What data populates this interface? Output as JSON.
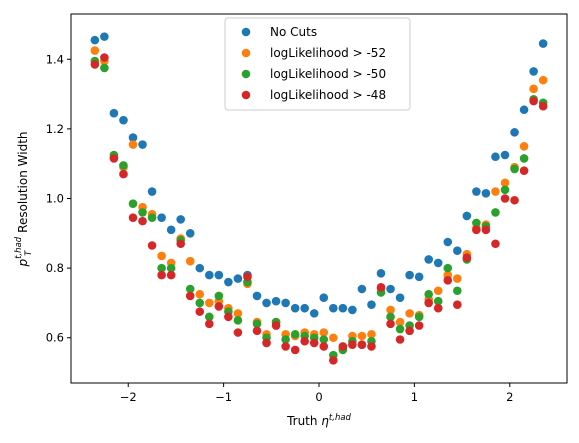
{
  "chart_data": {
    "type": "scatter",
    "xlabel_main": "Truth ",
    "xlabel_sym": "η",
    "xlabel_sup": "t,had",
    "ylabel_sym": "p",
    "ylabel_sub": "T",
    "ylabel_sup": "t,had",
    "ylabel_rest": " Resolution Width",
    "xlim": [
      -2.6,
      2.6
    ],
    "ylim": [
      0.47,
      1.53
    ],
    "x_ticks": [
      -2,
      -1,
      0,
      1,
      2
    ],
    "x_tick_labels": [
      "−2",
      "−1",
      "0",
      "1",
      "2"
    ],
    "y_ticks": [
      0.6,
      0.8,
      1.0,
      1.2,
      1.4
    ],
    "y_tick_labels": [
      "0.6",
      "0.8",
      "1.0",
      "1.2",
      "1.4"
    ],
    "legend_position": "upper-center",
    "series": [
      {
        "name": "No Cuts",
        "color": "#1f77b4",
        "x": [
          -2.35,
          -2.25,
          -2.15,
          -2.05,
          -1.95,
          -1.85,
          -1.75,
          -1.65,
          -1.55,
          -1.45,
          -1.35,
          -1.25,
          -1.15,
          -1.05,
          -0.95,
          -0.85,
          -0.75,
          -0.65,
          -0.55,
          -0.45,
          -0.35,
          -0.25,
          -0.15,
          -0.05,
          0.05,
          0.15,
          0.25,
          0.35,
          0.45,
          0.55,
          0.65,
          0.75,
          0.85,
          0.95,
          1.05,
          1.15,
          1.25,
          1.35,
          1.45,
          1.55,
          1.65,
          1.75,
          1.85,
          1.95,
          2.05,
          2.15,
          2.25,
          2.35
        ],
        "y": [
          1.455,
          1.465,
          1.245,
          1.225,
          1.175,
          1.155,
          1.02,
          0.945,
          0.91,
          0.94,
          0.9,
          0.8,
          0.78,
          0.78,
          0.76,
          0.77,
          0.78,
          0.72,
          0.7,
          0.705,
          0.7,
          0.685,
          0.685,
          0.67,
          0.715,
          0.685,
          0.685,
          0.68,
          0.74,
          0.695,
          0.785,
          0.74,
          0.715,
          0.78,
          0.775,
          0.825,
          0.815,
          0.875,
          0.85,
          0.95,
          1.02,
          1.015,
          1.12,
          1.125,
          1.19,
          1.255,
          1.365,
          1.445
        ]
      },
      {
        "name": "logLikelihood > -52",
        "color": "#ff7f0e",
        "x": [
          -2.35,
          -2.25,
          -2.15,
          -2.05,
          -1.95,
          -1.85,
          -1.75,
          -1.65,
          -1.55,
          -1.45,
          -1.35,
          -1.25,
          -1.15,
          -1.05,
          -0.95,
          -0.85,
          -0.75,
          -0.65,
          -0.55,
          -0.45,
          -0.35,
          -0.25,
          -0.15,
          -0.05,
          0.05,
          0.15,
          0.25,
          0.35,
          0.45,
          0.55,
          0.65,
          0.75,
          0.85,
          0.95,
          1.05,
          1.15,
          1.25,
          1.35,
          1.45,
          1.55,
          1.65,
          1.75,
          1.85,
          1.95,
          2.05,
          2.15,
          2.25,
          2.35
        ],
        "y": [
          1.425,
          1.395,
          1.12,
          1.09,
          1.155,
          0.975,
          0.955,
          0.835,
          0.815,
          0.885,
          0.82,
          0.725,
          0.7,
          0.705,
          0.685,
          0.67,
          0.755,
          0.645,
          0.61,
          0.645,
          0.61,
          0.605,
          0.615,
          0.61,
          0.615,
          0.6,
          0.57,
          0.605,
          0.605,
          0.61,
          0.74,
          0.68,
          0.645,
          0.67,
          0.665,
          0.71,
          0.735,
          0.78,
          0.77,
          0.84,
          0.915,
          0.925,
          1.02,
          1.045,
          1.09,
          1.15,
          1.315,
          1.34
        ]
      },
      {
        "name": "logLikelihood > -50",
        "color": "#2ca02c",
        "x": [
          -2.35,
          -2.25,
          -2.15,
          -2.05,
          -1.95,
          -1.85,
          -1.75,
          -1.65,
          -1.55,
          -1.45,
          -1.35,
          -1.25,
          -1.15,
          -1.05,
          -0.95,
          -0.85,
          -0.75,
          -0.65,
          -0.55,
          -0.45,
          -0.35,
          -0.25,
          -0.15,
          -0.05,
          0.05,
          0.15,
          0.25,
          0.35,
          0.45,
          0.55,
          0.65,
          0.75,
          0.85,
          0.95,
          1.05,
          1.15,
          1.25,
          1.35,
          1.45,
          1.55,
          1.65,
          1.75,
          1.85,
          1.95,
          2.05,
          2.15,
          2.25,
          2.35
        ],
        "y": [
          1.395,
          1.375,
          1.125,
          1.095,
          0.985,
          0.96,
          0.945,
          0.8,
          0.8,
          0.88,
          0.74,
          0.7,
          0.66,
          0.72,
          0.675,
          0.65,
          0.76,
          0.64,
          0.6,
          0.645,
          0.595,
          0.61,
          0.605,
          0.6,
          0.595,
          0.55,
          0.565,
          0.59,
          0.58,
          0.59,
          0.73,
          0.66,
          0.625,
          0.635,
          0.66,
          0.725,
          0.705,
          0.8,
          0.735,
          0.825,
          0.93,
          0.92,
          0.96,
          1.025,
          1.085,
          1.115,
          1.285,
          1.275
        ]
      },
      {
        "name": "logLikelihood > -48",
        "color": "#d62728",
        "x": [
          -2.35,
          -2.25,
          -2.15,
          -2.05,
          -1.95,
          -1.85,
          -1.75,
          -1.65,
          -1.55,
          -1.45,
          -1.35,
          -1.25,
          -1.15,
          -1.05,
          -0.95,
          -0.85,
          -0.75,
          -0.65,
          -0.55,
          -0.45,
          -0.35,
          -0.25,
          -0.15,
          -0.05,
          0.05,
          0.15,
          0.25,
          0.35,
          0.45,
          0.55,
          0.65,
          0.75,
          0.85,
          0.95,
          1.05,
          1.15,
          1.25,
          1.35,
          1.45,
          1.55,
          1.65,
          1.75,
          1.85,
          1.95,
          2.05,
          2.15,
          2.25,
          2.35
        ],
        "y": [
          1.385,
          1.405,
          1.115,
          1.07,
          0.945,
          0.935,
          0.865,
          0.78,
          0.78,
          0.87,
          0.72,
          0.675,
          0.64,
          0.69,
          0.66,
          0.615,
          0.775,
          0.62,
          0.585,
          0.635,
          0.575,
          0.565,
          0.59,
          0.585,
          0.575,
          0.535,
          0.575,
          0.58,
          0.58,
          0.575,
          0.745,
          0.64,
          0.595,
          0.62,
          0.635,
          0.7,
          0.685,
          0.765,
          0.695,
          0.83,
          0.91,
          0.91,
          0.87,
          1.0,
          0.995,
          1.08,
          1.28,
          1.265
        ]
      }
    ]
  }
}
